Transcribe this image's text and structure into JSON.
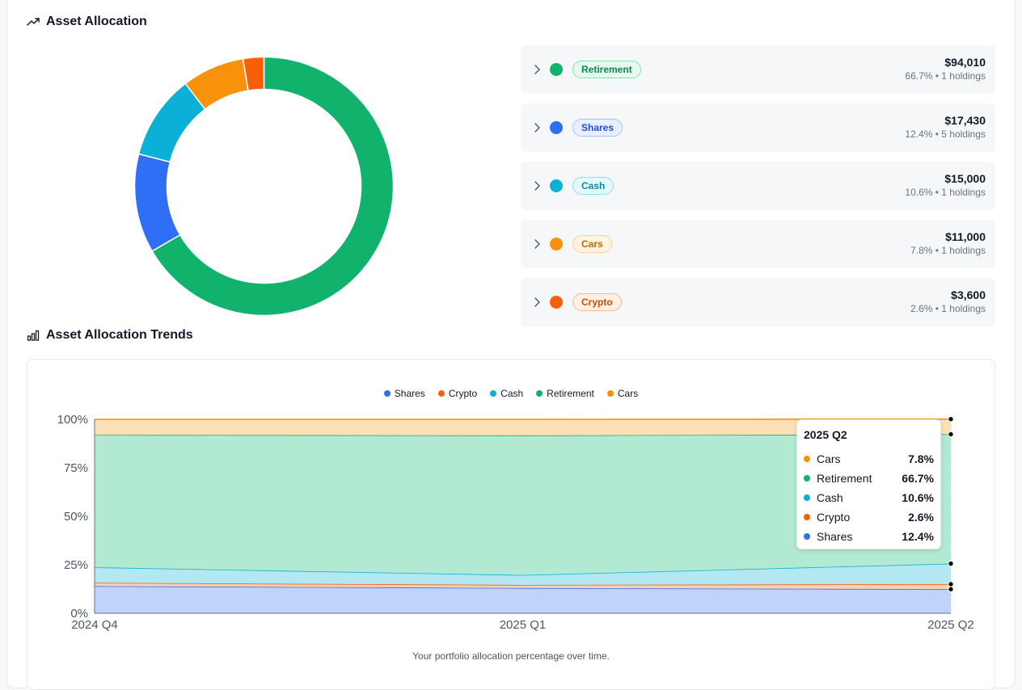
{
  "allocation": {
    "title": "Asset Allocation",
    "items": [
      {
        "name": "Retirement",
        "value": "$94,010",
        "meta": "66.7% • 1 holdings",
        "color": "#10b26c",
        "badge_bg": "#e7f8ef",
        "badge_border": "#86e0b1",
        "badge_text": "#0b8a50"
      },
      {
        "name": "Shares",
        "value": "$17,430",
        "meta": "12.4% • 5 holdings",
        "color": "#2f6ff6",
        "badge_bg": "#e8f0ff",
        "badge_border": "#a6c3fb",
        "badge_text": "#1d4fd6"
      },
      {
        "name": "Cash",
        "value": "$15,000",
        "meta": "10.6% • 1 holdings",
        "color": "#0bb0d9",
        "badge_bg": "#e5f9fd",
        "badge_border": "#8fdfef",
        "badge_text": "#0a8aa9"
      },
      {
        "name": "Cars",
        "value": "$11,000",
        "meta": "7.8% • 1 holdings",
        "color": "#f7920a",
        "badge_bg": "#fff4e3",
        "badge_border": "#fbcf8c",
        "badge_text": "#c46a00"
      },
      {
        "name": "Crypto",
        "value": "$3,600",
        "meta": "2.6% • 1 holdings",
        "color": "#f85f07",
        "badge_bg": "#fff0e6",
        "badge_border": "#fbb98c",
        "badge_text": "#d14d00"
      }
    ]
  },
  "trends": {
    "title": "Asset Allocation Trends",
    "caption": "Your portfolio allocation percentage over time."
  },
  "tooltip": {
    "title": "2025 Q2",
    "rows": [
      {
        "name": "Cars",
        "value": "7.8%",
        "color": "#f7920a"
      },
      {
        "name": "Retirement",
        "value": "66.7%",
        "color": "#10b26c"
      },
      {
        "name": "Cash",
        "value": "10.6%",
        "color": "#0bb0d9"
      },
      {
        "name": "Crypto",
        "value": "2.6%",
        "color": "#f85f07"
      },
      {
        "name": "Shares",
        "value": "12.4%",
        "color": "#2f6ff6"
      }
    ]
  },
  "chart_data": [
    {
      "type": "pie",
      "title": "",
      "categories": [
        "Retirement",
        "Shares",
        "Cash",
        "Cars",
        "Crypto"
      ],
      "values": [
        66.7,
        12.4,
        10.6,
        7.8,
        2.6
      ],
      "colors": [
        "#10b26c",
        "#2f6ff6",
        "#0bb0d9",
        "#f7920a",
        "#f85f07"
      ],
      "donut": true
    },
    {
      "type": "area",
      "stacked": true,
      "title": "",
      "x": [
        "2024 Q4",
        "2025 Q1",
        "2025 Q2"
      ],
      "ylim": [
        0,
        100
      ],
      "yticks": [
        "0%",
        "25%",
        "50%",
        "75%",
        "100%"
      ],
      "grid": true,
      "legend": "top-center",
      "series": [
        {
          "name": "Shares",
          "values": [
            14.0,
            13.0,
            12.4
          ],
          "color": "#2f6ff6"
        },
        {
          "name": "Crypto",
          "values": [
            1.7,
            1.6,
            2.6
          ],
          "color": "#f85f07"
        },
        {
          "name": "Cash",
          "values": [
            8.0,
            5.1,
            10.6
          ],
          "color": "#0bb0d9"
        },
        {
          "name": "Retirement",
          "values": [
            68.3,
            72.0,
            66.7
          ],
          "color": "#10b26c"
        },
        {
          "name": "Cars",
          "values": [
            8.0,
            8.3,
            7.8
          ],
          "color": "#f7920a"
        }
      ]
    }
  ]
}
